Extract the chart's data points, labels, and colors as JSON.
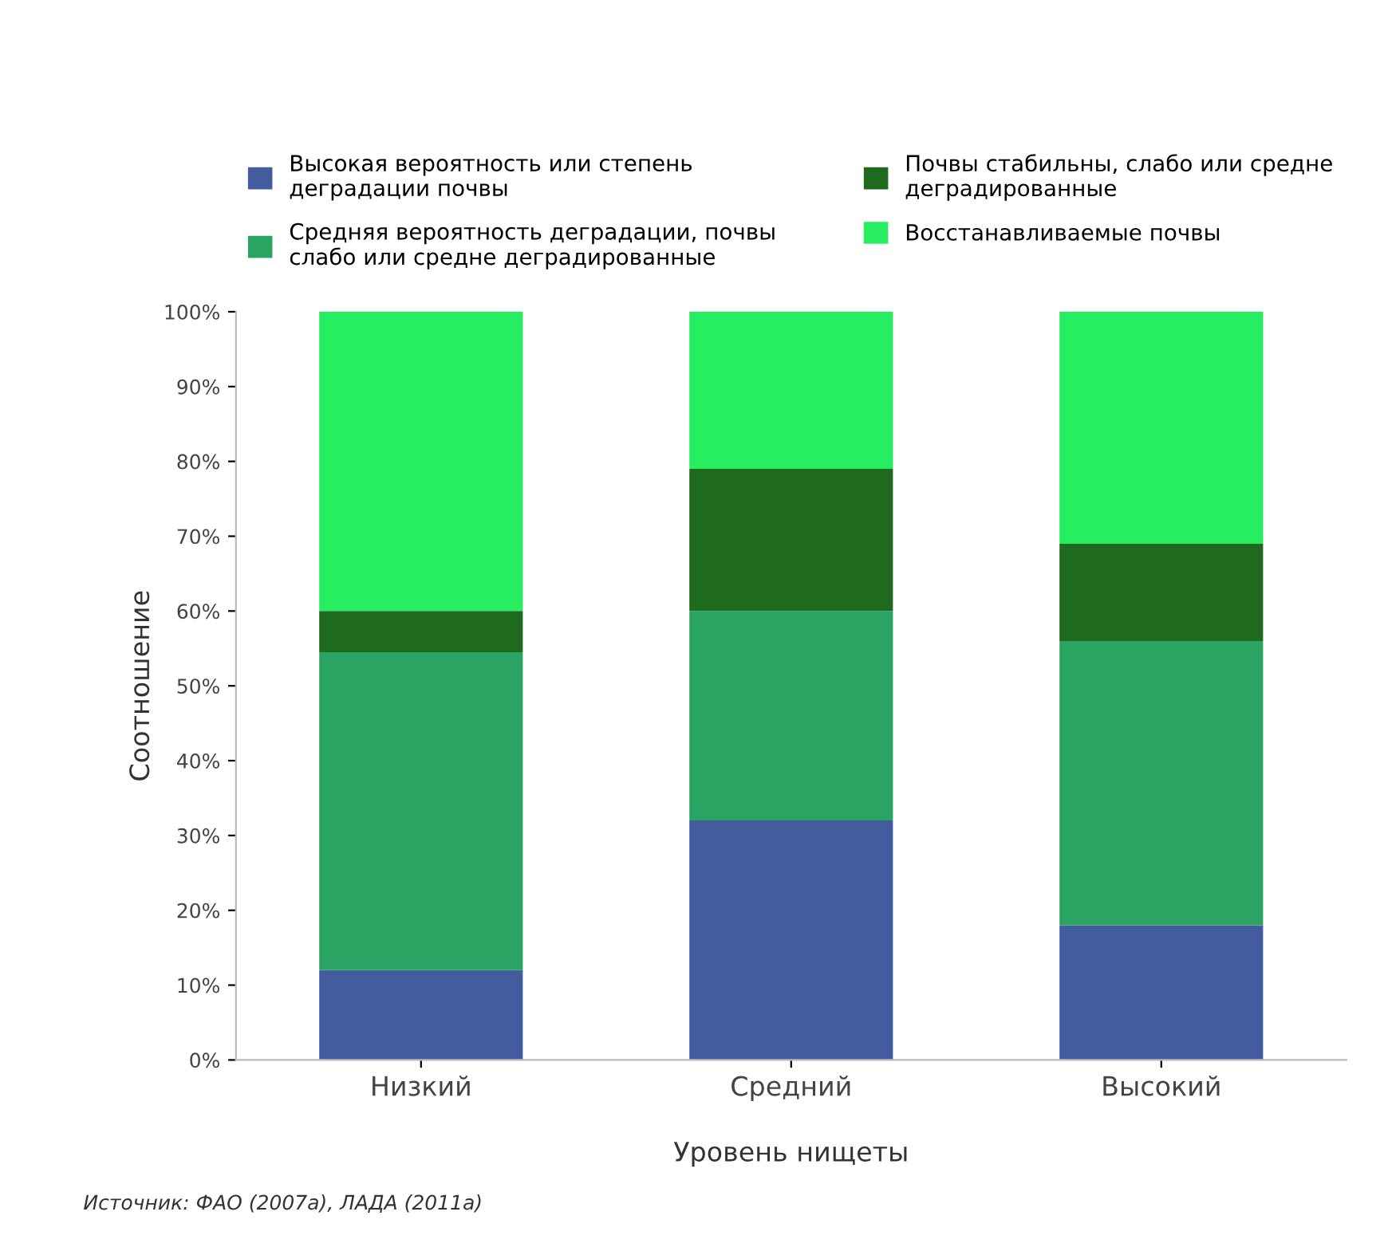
{
  "chart_data": {
    "type": "bar",
    "stacked": true,
    "categories": [
      "Низкий",
      "Средний",
      "Высокий"
    ],
    "xlabel": "Уровень нищеты",
    "ylabel": "Соотношение",
    "series": [
      {
        "name": "Высокая вероятность или степень деградации почвы",
        "color": "#435c9e",
        "values": [
          12,
          32,
          18
        ]
      },
      {
        "name": "Средняя вероятность деградации, почвы слабо или средне деградированные",
        "color": "#2ba362",
        "values": [
          42.5,
          28,
          38
        ]
      },
      {
        "name": "Почвы стабильны, слабо или средне деградированные",
        "color": "#1e6a1e",
        "values": [
          5.5,
          19,
          13
        ]
      },
      {
        "name": "Восстанавливаемые почвы",
        "color": "#27ee60",
        "values": [
          40,
          21,
          31
        ]
      }
    ],
    "ylim": [
      0,
      100
    ],
    "yticks": [
      {
        "value": 0,
        "label": "0%"
      },
      {
        "value": 10,
        "label": "10%"
      },
      {
        "value": 20,
        "label": "20%"
      },
      {
        "value": 30,
        "label": "30%"
      },
      {
        "value": 40,
        "label": "40%"
      },
      {
        "value": 50,
        "label": "50%"
      },
      {
        "value": 60,
        "label": "60%"
      },
      {
        "value": 70,
        "label": "70%"
      },
      {
        "value": 80,
        "label": "80%"
      },
      {
        "value": 90,
        "label": "90%"
      },
      {
        "value": 100,
        "label": "100%"
      }
    ],
    "legend": "top",
    "annotations": [
      "Источник: ФАО (2007a), ЛАДА (2011a)"
    ]
  }
}
